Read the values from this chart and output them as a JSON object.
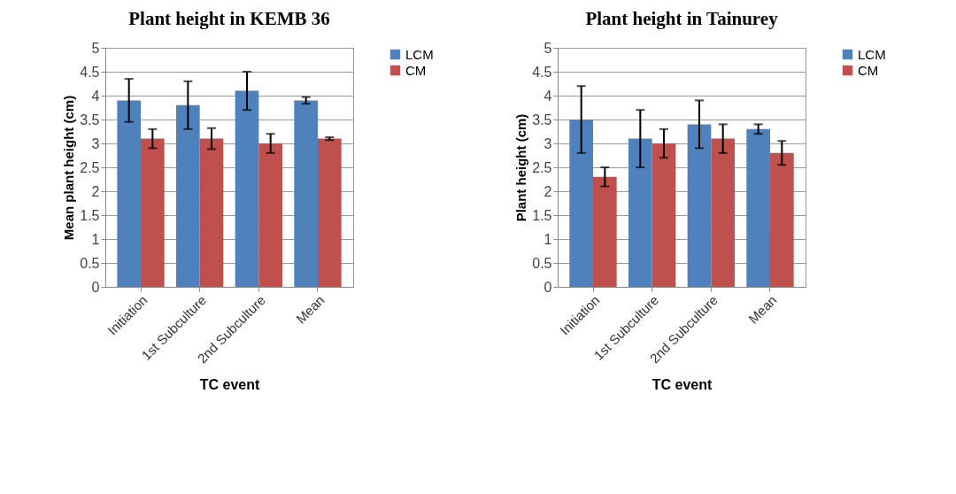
{
  "chart_data": [
    {
      "type": "bar",
      "title": "Plant height in KEMB 36",
      "xlabel": "TC event",
      "ylabel": "Mean plant  height (cm)",
      "categories": [
        "Initiation",
        "1st Subculture",
        "2nd Subculture",
        "Mean"
      ],
      "series": [
        {
          "name": "LCM",
          "color": "#4f81bd",
          "values": [
            3.9,
            3.8,
            4.1,
            3.9
          ],
          "errors": [
            0.45,
            0.5,
            0.4,
            0.07
          ]
        },
        {
          "name": "CM",
          "color": "#c0504d",
          "values": [
            3.1,
            3.1,
            3.0,
            3.1
          ],
          "errors": [
            0.2,
            0.22,
            0.2,
            0.03
          ]
        }
      ],
      "ylim": [
        0,
        5
      ],
      "yticks": [
        0,
        0.5,
        1,
        1.5,
        2,
        2.5,
        3,
        3.5,
        4,
        4.5,
        5
      ],
      "grid": "y",
      "legend": "right"
    },
    {
      "type": "bar",
      "title": "Plant height in Tainurey",
      "xlabel": "TC event",
      "ylabel": "Plant height (cm)",
      "categories": [
        "Initiation",
        "1st Subculture",
        "2nd Subculture",
        "Mean"
      ],
      "series": [
        {
          "name": "LCM",
          "color": "#4f81bd",
          "values": [
            3.5,
            3.1,
            3.4,
            3.3
          ],
          "errors": [
            0.7,
            0.6,
            0.5,
            0.1
          ]
        },
        {
          "name": "CM",
          "color": "#c0504d",
          "values": [
            2.3,
            3.0,
            3.1,
            2.8
          ],
          "errors": [
            0.2,
            0.3,
            0.3,
            0.25
          ]
        }
      ],
      "ylim": [
        0,
        5
      ],
      "yticks": [
        0,
        0.5,
        1,
        1.5,
        2,
        2.5,
        3,
        3.5,
        4,
        4.5,
        5
      ],
      "grid": "y",
      "legend": "right"
    }
  ]
}
